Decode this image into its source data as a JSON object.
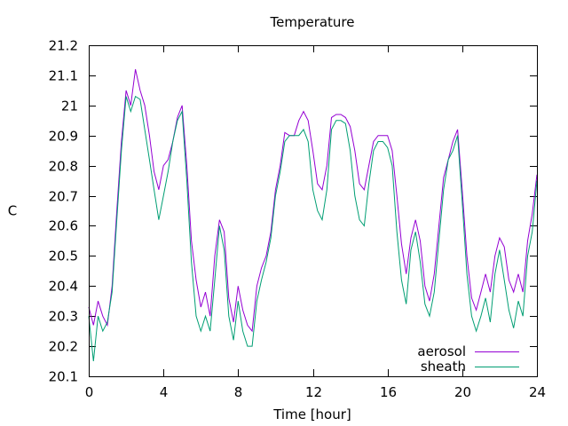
{
  "chart_data": {
    "type": "line",
    "title": "Temperature",
    "xlabel": "Time [hour]",
    "ylabel": "C",
    "xlim": [
      0,
      24
    ],
    "ylim": [
      20.1,
      21.2
    ],
    "x_ticks": [
      0,
      4,
      8,
      12,
      16,
      20,
      24
    ],
    "x_tick_labels": [
      "0",
      "4",
      "8",
      "12",
      "16",
      "20",
      "24"
    ],
    "y_ticks": [
      20.1,
      20.2,
      20.3,
      20.4,
      20.5,
      20.6,
      20.7,
      20.8,
      20.9,
      21.0,
      21.1,
      21.2
    ],
    "y_tick_labels": [
      "20.1",
      "20.2",
      "20.3",
      "20.4",
      "20.5",
      "20.6",
      "20.7",
      "20.8",
      "20.9",
      "21",
      "21.1",
      "21.2"
    ],
    "grid": false,
    "legend_position": "bottom-right",
    "x": [
      0,
      0.25,
      0.5,
      0.75,
      1.0,
      1.25,
      1.5,
      1.75,
      2.0,
      2.25,
      2.5,
      2.75,
      3.0,
      3.25,
      3.5,
      3.75,
      4.0,
      4.25,
      4.5,
      4.75,
      5.0,
      5.25,
      5.5,
      5.75,
      6.0,
      6.25,
      6.5,
      6.75,
      7.0,
      7.25,
      7.5,
      7.75,
      8.0,
      8.25,
      8.5,
      8.75,
      9.0,
      9.25,
      9.5,
      9.75,
      10.0,
      10.25,
      10.5,
      10.75,
      11.0,
      11.25,
      11.5,
      11.75,
      12.0,
      12.25,
      12.5,
      12.75,
      13.0,
      13.25,
      13.5,
      13.75,
      14.0,
      14.25,
      14.5,
      14.75,
      15.0,
      15.25,
      15.5,
      15.75,
      16.0,
      16.25,
      16.5,
      16.75,
      17.0,
      17.25,
      17.5,
      17.75,
      18.0,
      18.25,
      18.5,
      18.75,
      19.0,
      19.25,
      19.5,
      19.75,
      20.0,
      20.25,
      20.5,
      20.75,
      21.0,
      21.25,
      21.5,
      21.75,
      22.0,
      22.25,
      22.5,
      22.75,
      23.0,
      23.25,
      23.5,
      23.75,
      24.0
    ],
    "series": [
      {
        "name": "aerosol",
        "color": "#9400d3",
        "values": [
          20.33,
          20.27,
          20.35,
          20.3,
          20.27,
          20.4,
          20.65,
          20.88,
          21.05,
          21.0,
          21.12,
          21.05,
          21.0,
          20.9,
          20.78,
          20.72,
          20.8,
          20.82,
          20.88,
          20.96,
          21.0,
          20.8,
          20.55,
          20.42,
          20.33,
          20.38,
          20.3,
          20.5,
          20.62,
          20.58,
          20.36,
          20.28,
          20.4,
          20.32,
          20.27,
          20.25,
          20.4,
          20.46,
          20.5,
          20.58,
          20.72,
          20.8,
          20.91,
          20.9,
          20.9,
          20.95,
          20.98,
          20.95,
          20.85,
          20.74,
          20.72,
          20.8,
          20.96,
          20.97,
          20.97,
          20.96,
          20.93,
          20.85,
          20.74,
          20.72,
          20.8,
          20.88,
          20.9,
          20.9,
          20.9,
          20.85,
          20.7,
          20.54,
          20.44,
          20.56,
          20.62,
          20.55,
          20.4,
          20.35,
          20.44,
          20.6,
          20.76,
          20.82,
          20.88,
          20.92,
          20.72,
          20.5,
          20.36,
          20.32,
          20.38,
          20.44,
          20.38,
          20.5,
          20.56,
          20.53,
          20.42,
          20.38,
          20.44,
          20.38,
          20.55,
          20.64,
          20.77
        ]
      },
      {
        "name": "sheath",
        "color": "#009e73",
        "values": [
          20.3,
          20.15,
          20.3,
          20.25,
          20.28,
          20.38,
          20.62,
          20.85,
          21.03,
          20.98,
          21.03,
          21.02,
          20.92,
          20.82,
          20.72,
          20.62,
          20.7,
          20.78,
          20.88,
          20.95,
          20.98,
          20.75,
          20.48,
          20.3,
          20.25,
          20.3,
          20.25,
          20.42,
          20.6,
          20.52,
          20.3,
          20.22,
          20.35,
          20.25,
          20.2,
          20.2,
          20.35,
          20.42,
          20.48,
          20.56,
          20.7,
          20.78,
          20.88,
          20.9,
          20.9,
          20.9,
          20.92,
          20.88,
          20.72,
          20.65,
          20.62,
          20.72,
          20.92,
          20.95,
          20.95,
          20.94,
          20.85,
          20.7,
          20.62,
          20.6,
          20.74,
          20.85,
          20.88,
          20.88,
          20.86,
          20.8,
          20.58,
          20.42,
          20.34,
          20.52,
          20.58,
          20.48,
          20.34,
          20.3,
          20.38,
          20.55,
          20.72,
          20.82,
          20.85,
          20.9,
          20.68,
          20.44,
          20.3,
          20.25,
          20.3,
          20.36,
          20.28,
          20.44,
          20.52,
          20.42,
          20.32,
          20.26,
          20.35,
          20.3,
          20.5,
          20.58,
          20.75
        ]
      }
    ]
  }
}
